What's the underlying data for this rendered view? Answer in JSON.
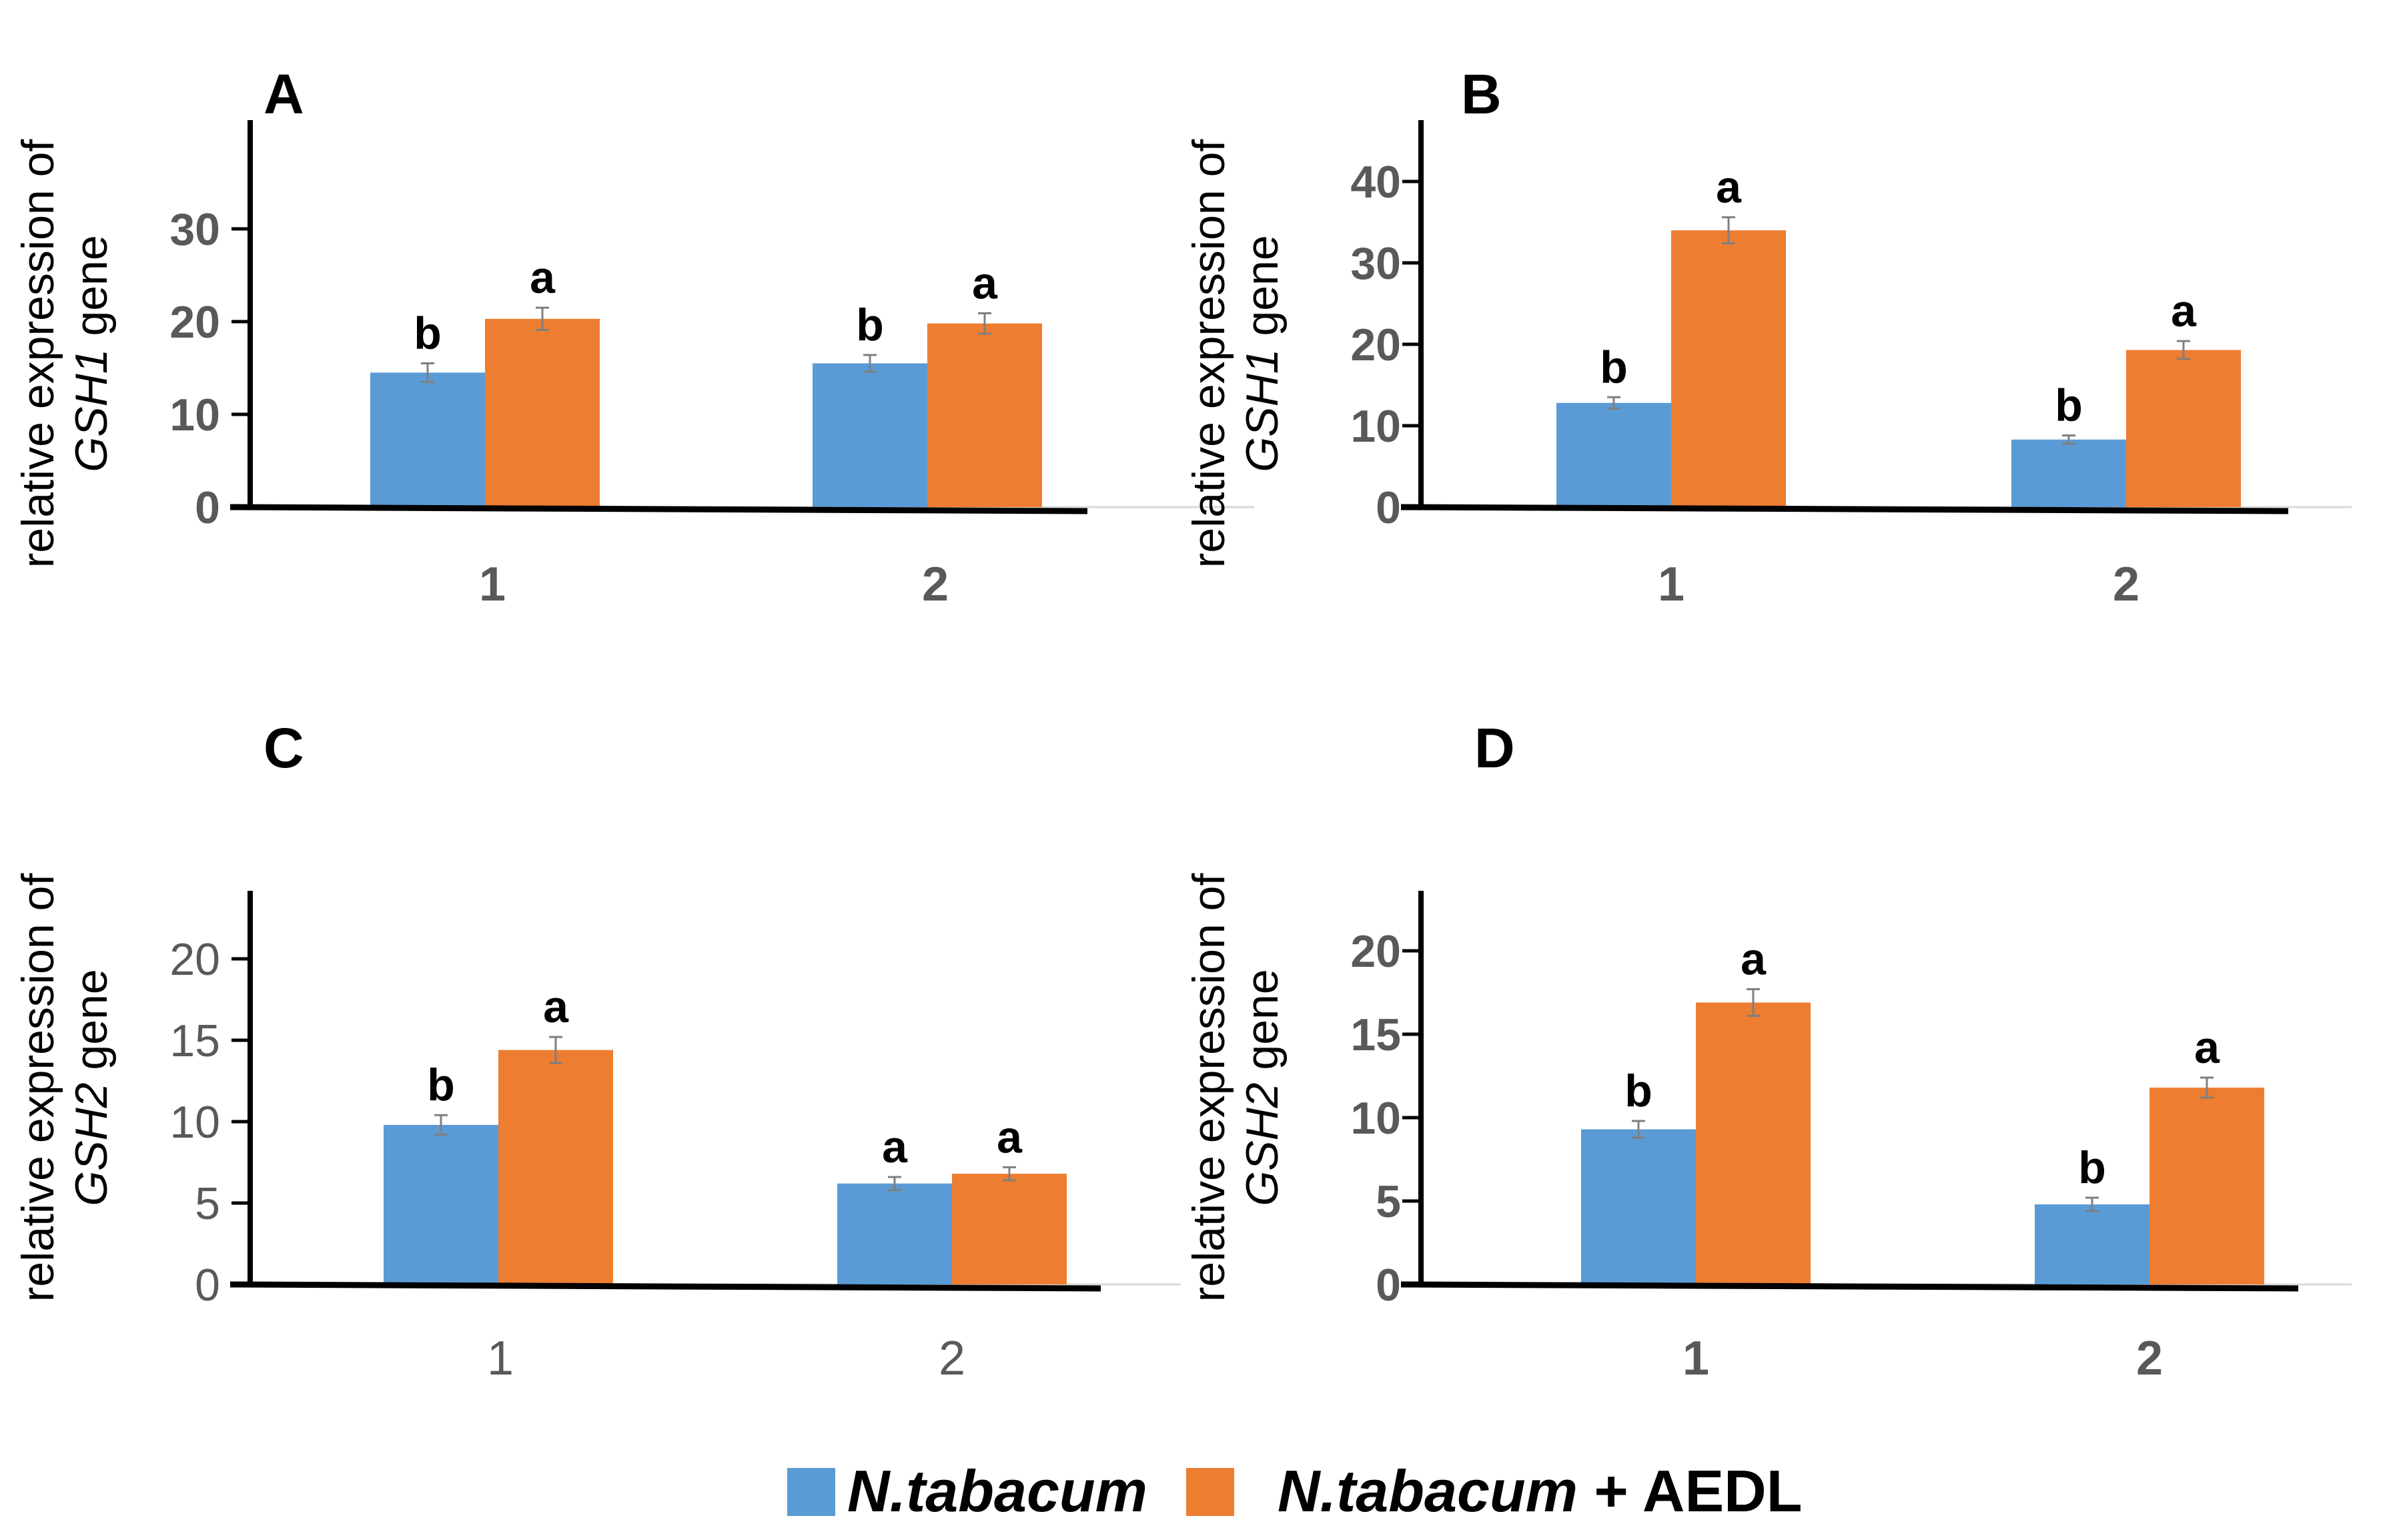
{
  "legend": {
    "series1": "N.tabacum",
    "series2_italic": "N.tabacum",
    "series2_suffix": " + AEDL"
  },
  "colors": {
    "series1": "#5b9bd5",
    "series2": "#ed7d31",
    "axis": "#000000",
    "tick_text": "#595959",
    "error_bar": "#7f7f7f"
  },
  "chart_data": [
    {
      "type": "bar",
      "panel": "A",
      "ylabel_line1": "relative expression of",
      "ylabel_gene": "GSH1",
      "ylabel_suffix": " gene",
      "ylim": [
        0,
        40
      ],
      "yticks": [
        0,
        10,
        20,
        30
      ],
      "categories": [
        "1",
        "2"
      ],
      "series": [
        {
          "name": "N.tabacum",
          "values": [
            14.5,
            15.5
          ],
          "errors": [
            1.0,
            0.9
          ],
          "letters": [
            "b",
            "b"
          ]
        },
        {
          "name": "N.tabacum + AEDL",
          "values": [
            20.3,
            19.8
          ],
          "errors": [
            1.2,
            1.1
          ],
          "letters": [
            "a",
            "a"
          ]
        }
      ]
    },
    {
      "type": "bar",
      "panel": "B",
      "ylabel_line1": "relative expression of",
      "ylabel_gene": "GSH1",
      "ylabel_suffix": " gene",
      "ylim": [
        0,
        47
      ],
      "yticks": [
        0,
        10,
        20,
        30,
        40
      ],
      "categories": [
        "1",
        "2"
      ],
      "series": [
        {
          "name": "N.tabacum",
          "values": [
            12.8,
            8.3
          ],
          "errors": [
            0.7,
            0.5
          ],
          "letters": [
            "b",
            "b"
          ]
        },
        {
          "name": "N.tabacum + AEDL",
          "values": [
            34.0,
            19.3
          ],
          "errors": [
            1.6,
            1.1
          ],
          "letters": [
            "a",
            "a"
          ]
        }
      ]
    },
    {
      "type": "bar",
      "panel": "C",
      "ylabel_line1": "relative expression of",
      "ylabel_gene": "GSH2",
      "ylabel_suffix": " gene",
      "ylim": [
        0,
        23.5
      ],
      "yticks": [
        0,
        5,
        10,
        15,
        20
      ],
      "categories": [
        "1",
        "2"
      ],
      "series": [
        {
          "name": "N.tabacum",
          "values": [
            9.8,
            6.2
          ],
          "errors": [
            0.6,
            0.4
          ],
          "letters": [
            "b",
            "a"
          ]
        },
        {
          "name": "N.tabacum + AEDL",
          "values": [
            14.4,
            6.8
          ],
          "errors": [
            0.8,
            0.4
          ],
          "letters": [
            "a",
            "a"
          ]
        }
      ]
    },
    {
      "type": "bar",
      "panel": "D",
      "ylabel_line1": "relative expression of",
      "ylabel_gene": "GSH2",
      "ylabel_suffix": " gene",
      "ylim": [
        0,
        23.5
      ],
      "yticks": [
        0,
        5,
        10,
        15,
        20
      ],
      "categories": [
        "1",
        "2"
      ],
      "series": [
        {
          "name": "N.tabacum",
          "values": [
            9.3,
            4.8
          ],
          "errors": [
            0.5,
            0.4
          ],
          "letters": [
            "b",
            "b"
          ]
        },
        {
          "name": "N.tabacum + AEDL",
          "values": [
            16.9,
            11.8
          ],
          "errors": [
            0.8,
            0.6
          ],
          "letters": [
            "a",
            "a"
          ]
        }
      ]
    }
  ]
}
